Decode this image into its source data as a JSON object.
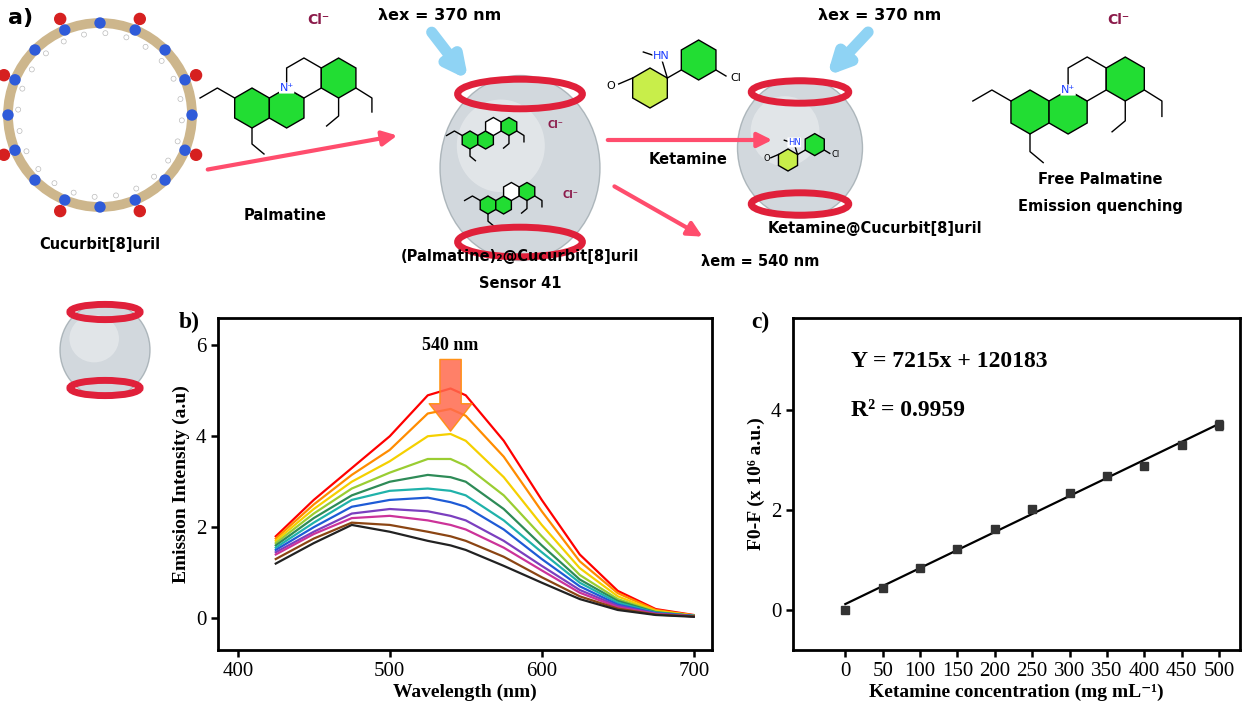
{
  "panel_a": {
    "label": "a)",
    "host": "Cucurbit[8]uril",
    "guest": "Palmatine",
    "counterion": "Cl⁻",
    "guest_charge": "N⁺",
    "excitation": "λex = 370 nm",
    "complex": "(Palmatine)₂@Cucurbit[8]uril",
    "sensor": "Sensor 41",
    "analyte": "Ketamine",
    "analyte_atoms": [
      "HN",
      "O",
      "Cl"
    ],
    "analyte_complex": "Ketamine@Cucurbit[8]uril",
    "emission": "λem = 540 nm",
    "released": "Free Palmatine",
    "result": "Emission quenching"
  },
  "chart_data": [
    {
      "panel_label": "b)",
      "type": "line",
      "x": [
        425,
        450,
        475,
        500,
        525,
        540,
        550,
        575,
        600,
        625,
        650,
        675,
        700
      ],
      "series": [
        {
          "color": "#ff0000",
          "values": [
            1.8,
            2.6,
            3.3,
            4.0,
            4.9,
            5.05,
            4.9,
            3.9,
            2.6,
            1.4,
            0.6,
            0.2,
            0.07
          ]
        },
        {
          "color": "#ff8c00",
          "values": [
            1.75,
            2.5,
            3.15,
            3.7,
            4.5,
            4.6,
            4.45,
            3.55,
            2.35,
            1.25,
            0.55,
            0.18,
            0.06
          ]
        },
        {
          "color": "#f5d000",
          "values": [
            1.7,
            2.4,
            3.0,
            3.45,
            4.0,
            4.05,
            3.9,
            3.1,
            2.05,
            1.1,
            0.48,
            0.16,
            0.06
          ]
        },
        {
          "color": "#9acd32",
          "values": [
            1.65,
            2.3,
            2.85,
            3.2,
            3.5,
            3.5,
            3.35,
            2.7,
            1.8,
            0.95,
            0.42,
            0.14,
            0.05
          ]
        },
        {
          "color": "#2e8b57",
          "values": [
            1.6,
            2.2,
            2.7,
            3.0,
            3.15,
            3.1,
            3.0,
            2.4,
            1.6,
            0.85,
            0.38,
            0.13,
            0.05
          ]
        },
        {
          "color": "#20b2aa",
          "values": [
            1.55,
            2.1,
            2.6,
            2.8,
            2.85,
            2.8,
            2.7,
            2.15,
            1.45,
            0.78,
            0.34,
            0.12,
            0.05
          ]
        },
        {
          "color": "#1e5bd6",
          "values": [
            1.5,
            2.0,
            2.45,
            2.6,
            2.65,
            2.55,
            2.45,
            1.95,
            1.3,
            0.7,
            0.3,
            0.11,
            0.05
          ]
        },
        {
          "color": "#7b3fbf",
          "values": [
            1.45,
            1.9,
            2.3,
            2.4,
            2.35,
            2.25,
            2.15,
            1.7,
            1.15,
            0.62,
            0.27,
            0.1,
            0.04
          ]
        },
        {
          "color": "#cc3399",
          "values": [
            1.4,
            1.85,
            2.2,
            2.25,
            2.15,
            2.05,
            1.95,
            1.55,
            1.05,
            0.56,
            0.24,
            0.09,
            0.04
          ]
        },
        {
          "color": "#8b4513",
          "values": [
            1.3,
            1.75,
            2.1,
            2.05,
            1.9,
            1.8,
            1.7,
            1.35,
            0.9,
            0.48,
            0.21,
            0.08,
            0.04
          ]
        },
        {
          "color": "#222222",
          "values": [
            1.2,
            1.65,
            2.05,
            1.9,
            1.7,
            1.6,
            1.5,
            1.15,
            0.78,
            0.42,
            0.18,
            0.07,
            0.03
          ]
        }
      ],
      "xlabel": "Wavelength (nm)",
      "ylabel": "Emission Intensity (a.u)",
      "xlim": [
        387,
        712
      ],
      "ylim": [
        -0.7,
        6.6
      ],
      "xticks": [
        400,
        500,
        600,
        700
      ],
      "yticks": [
        0,
        2,
        4,
        6
      ],
      "annotation": "540 nm"
    },
    {
      "panel_label": "c)",
      "type": "scatter",
      "x": [
        0,
        50,
        100,
        150,
        200,
        250,
        300,
        350,
        400,
        450,
        500
      ],
      "values": [
        0.0,
        0.45,
        0.85,
        1.22,
        1.62,
        2.02,
        2.35,
        2.68,
        2.88,
        3.3,
        3.7
      ],
      "errors": [
        0.03,
        0.04,
        0.04,
        0.05,
        0.06,
        0.06,
        0.05,
        0.06,
        0.06,
        0.05,
        0.1
      ],
      "color": "#333333",
      "marker": "square",
      "fit": {
        "x": [
          0,
          500
        ],
        "values": [
          0.12,
          3.73
        ],
        "color": "#000000"
      },
      "annotations": [
        "Y = 7215x + 120183",
        "R² = 0.9959"
      ],
      "xlabel": "Ketamine concentration (mg mL⁻¹)",
      "ylabel": "F0-F (x 10⁶ a.u.)",
      "xlim": [
        -70,
        528
      ],
      "ylim": [
        -0.8,
        5.85
      ],
      "xticks": [
        0,
        50,
        100,
        150,
        200,
        250,
        300,
        350,
        400,
        450,
        500
      ],
      "yticks": [
        0,
        2,
        4
      ]
    }
  ]
}
